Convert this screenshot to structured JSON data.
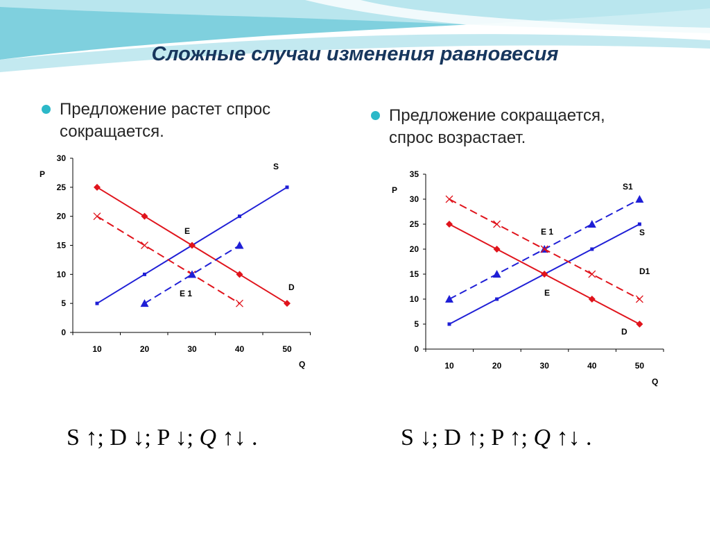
{
  "title": "Сложные случаи изменения равновесия",
  "bullets": {
    "left": {
      "line1": "Предложение растет спрос",
      "line2": "сокращается."
    },
    "right": {
      "line1": "Предложение сокращается,",
      "line2": "спрос возрастает."
    }
  },
  "colors": {
    "red": "#e0141c",
    "blue": "#1f1fd6",
    "title": "#17365d",
    "bullet": "#2cb8c8",
    "decor": "#7fd0de"
  },
  "chart_data": [
    {
      "type": "line",
      "ylabel": "P",
      "xlabel": "Q",
      "ylim": [
        0,
        30
      ],
      "yticks": [
        0,
        5,
        10,
        15,
        20,
        25,
        30
      ],
      "categories": [
        10,
        20,
        30,
        40,
        50
      ],
      "series": [
        {
          "name": "S",
          "color": "blue",
          "style": "solid",
          "marker": "square",
          "points": [
            [
              10,
              5
            ],
            [
              20,
              10
            ],
            [
              30,
              15
            ],
            [
              40,
              20
            ],
            [
              50,
              25
            ]
          ]
        },
        {
          "name": "D",
          "color": "red",
          "style": "solid",
          "marker": "diamond",
          "points": [
            [
              10,
              25
            ],
            [
              20,
              20
            ],
            [
              30,
              15
            ],
            [
              40,
              10
            ],
            [
              50,
              5
            ]
          ]
        },
        {
          "name": "",
          "color": "red",
          "style": "dashed",
          "marker": "x",
          "points": [
            [
              10,
              20
            ],
            [
              20,
              15
            ],
            [
              30,
              10
            ],
            [
              40,
              5
            ]
          ]
        },
        {
          "name": "",
          "color": "blue",
          "style": "dashed",
          "marker": "triangle",
          "points": [
            [
              20,
              5
            ],
            [
              30,
              10
            ],
            [
              40,
              15
            ]
          ]
        }
      ],
      "annotations": [
        "S",
        "D",
        "E",
        "E 1"
      ]
    },
    {
      "type": "line",
      "ylabel": "P",
      "xlabel": "Q",
      "ylim": [
        0,
        35
      ],
      "yticks": [
        0,
        5,
        10,
        15,
        20,
        25,
        30,
        35
      ],
      "categories": [
        10,
        20,
        30,
        40,
        50
      ],
      "series": [
        {
          "name": "S",
          "color": "blue",
          "style": "solid",
          "marker": "square",
          "points": [
            [
              10,
              5
            ],
            [
              20,
              10
            ],
            [
              30,
              15
            ],
            [
              40,
              20
            ],
            [
              50,
              25
            ]
          ]
        },
        {
          "name": "D",
          "color": "red",
          "style": "solid",
          "marker": "diamond",
          "points": [
            [
              10,
              25
            ],
            [
              20,
              20
            ],
            [
              30,
              15
            ],
            [
              40,
              10
            ],
            [
              50,
              5
            ]
          ]
        },
        {
          "name": "S1",
          "color": "blue",
          "style": "dashed",
          "marker": "triangle",
          "points": [
            [
              10,
              10
            ],
            [
              20,
              15
            ],
            [
              30,
              20
            ],
            [
              40,
              25
            ],
            [
              50,
              30
            ]
          ]
        },
        {
          "name": "D1",
          "color": "red",
          "style": "dashed",
          "marker": "x",
          "points": [
            [
              10,
              30
            ],
            [
              20,
              25
            ],
            [
              30,
              20
            ],
            [
              40,
              15
            ],
            [
              50,
              10
            ]
          ]
        }
      ],
      "annotations": [
        "S1",
        "S",
        "D1",
        "D",
        "E 1",
        "E"
      ]
    }
  ],
  "formulas": {
    "left": {
      "s": "S ↑;",
      "d": "D ↓;",
      "p": "P ↓;",
      "q": "Q",
      "qarrows": "↑↓",
      "end": "."
    },
    "right": {
      "s": "S ↓;",
      "d": "D ↑;",
      "p": "P ↑;",
      "q": "Q",
      "qarrows": "↑↓",
      "end": "."
    }
  }
}
